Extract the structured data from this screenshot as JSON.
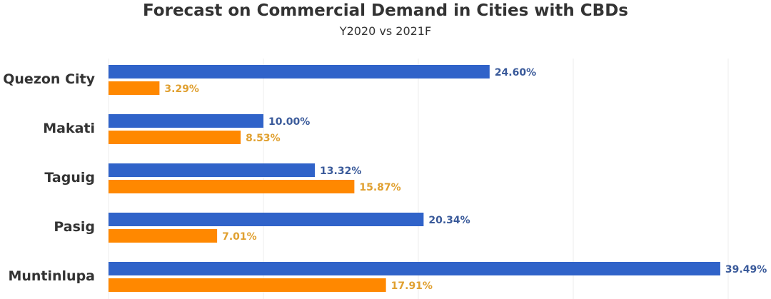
{
  "chart_data": {
    "type": "bar",
    "orientation": "horizontal",
    "title": "Forecast on Commercial Demand in Cities with CBDs",
    "subtitle": "Y2020 vs 2021F",
    "categories": [
      "Quezon City",
      "Makati",
      "Taguig",
      "Pasig",
      "Muntinlupa"
    ],
    "series": [
      {
        "name": "Y2020",
        "color": "#3063c9",
        "label_color": "#3a5a9a",
        "values": [
          24.6,
          10.0,
          13.32,
          20.34,
          39.49
        ],
        "labels": [
          "24.60%",
          "10.00%",
          "13.32%",
          "20.34%",
          "39.49%"
        ]
      },
      {
        "name": "2021F",
        "color": "#ff8800",
        "label_color": "#e0a030",
        "values": [
          3.29,
          8.53,
          15.87,
          7.01,
          17.91
        ],
        "labels": [
          "3.29%",
          "8.53%",
          "15.87%",
          "7.01%",
          "17.91%"
        ]
      }
    ],
    "xlim": [
      0,
      40
    ],
    "gridlines": [
      0,
      10,
      20,
      30,
      40
    ],
    "grid": true,
    "xlabel": "",
    "ylabel": "",
    "legend": "none"
  }
}
